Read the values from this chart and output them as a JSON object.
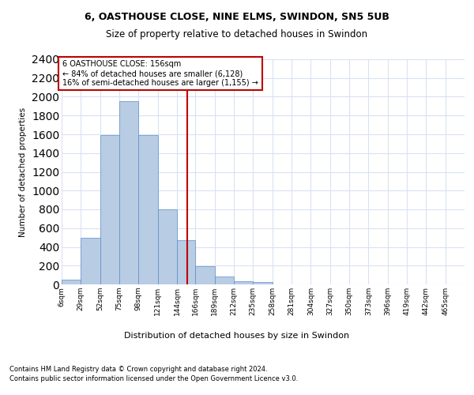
{
  "title_line1": "6, OASTHOUSE CLOSE, NINE ELMS, SWINDON, SN5 5UB",
  "title_line2": "Size of property relative to detached houses in Swindon",
  "xlabel": "Distribution of detached houses by size in Swindon",
  "ylabel": "Number of detached properties",
  "footer_line1": "Contains HM Land Registry data © Crown copyright and database right 2024.",
  "footer_line2": "Contains public sector information licensed under the Open Government Licence v3.0.",
  "annotation_line1": "6 OASTHOUSE CLOSE: 156sqm",
  "annotation_line2": "← 84% of detached houses are smaller (6,128)",
  "annotation_line3": "16% of semi-detached houses are larger (1,155) →",
  "property_size": 156,
  "bar_color": "#b8cce4",
  "bar_edgecolor": "#5b8dc8",
  "vline_color": "#c00000",
  "annotation_box_edgecolor": "#c00000",
  "grid_color": "#d9e1f2",
  "categories": [
    "6sqm",
    "29sqm",
    "52sqm",
    "75sqm",
    "98sqm",
    "121sqm",
    "144sqm",
    "166sqm",
    "189sqm",
    "212sqm",
    "235sqm",
    "258sqm",
    "281sqm",
    "304sqm",
    "327sqm",
    "350sqm",
    "373sqm",
    "396sqm",
    "419sqm",
    "442sqm",
    "465sqm"
  ],
  "bin_edges": [
    6,
    29,
    52,
    75,
    98,
    121,
    144,
    166,
    189,
    212,
    235,
    258,
    281,
    304,
    327,
    350,
    373,
    396,
    419,
    442,
    465,
    488
  ],
  "values": [
    50,
    500,
    1590,
    1950,
    1590,
    800,
    470,
    190,
    85,
    30,
    25,
    0,
    0,
    0,
    0,
    0,
    0,
    0,
    0,
    0,
    0
  ],
  "ylim": [
    0,
    2400
  ],
  "yticks": [
    0,
    200,
    400,
    600,
    800,
    1000,
    1200,
    1400,
    1600,
    1800,
    2000,
    2200,
    2400
  ]
}
